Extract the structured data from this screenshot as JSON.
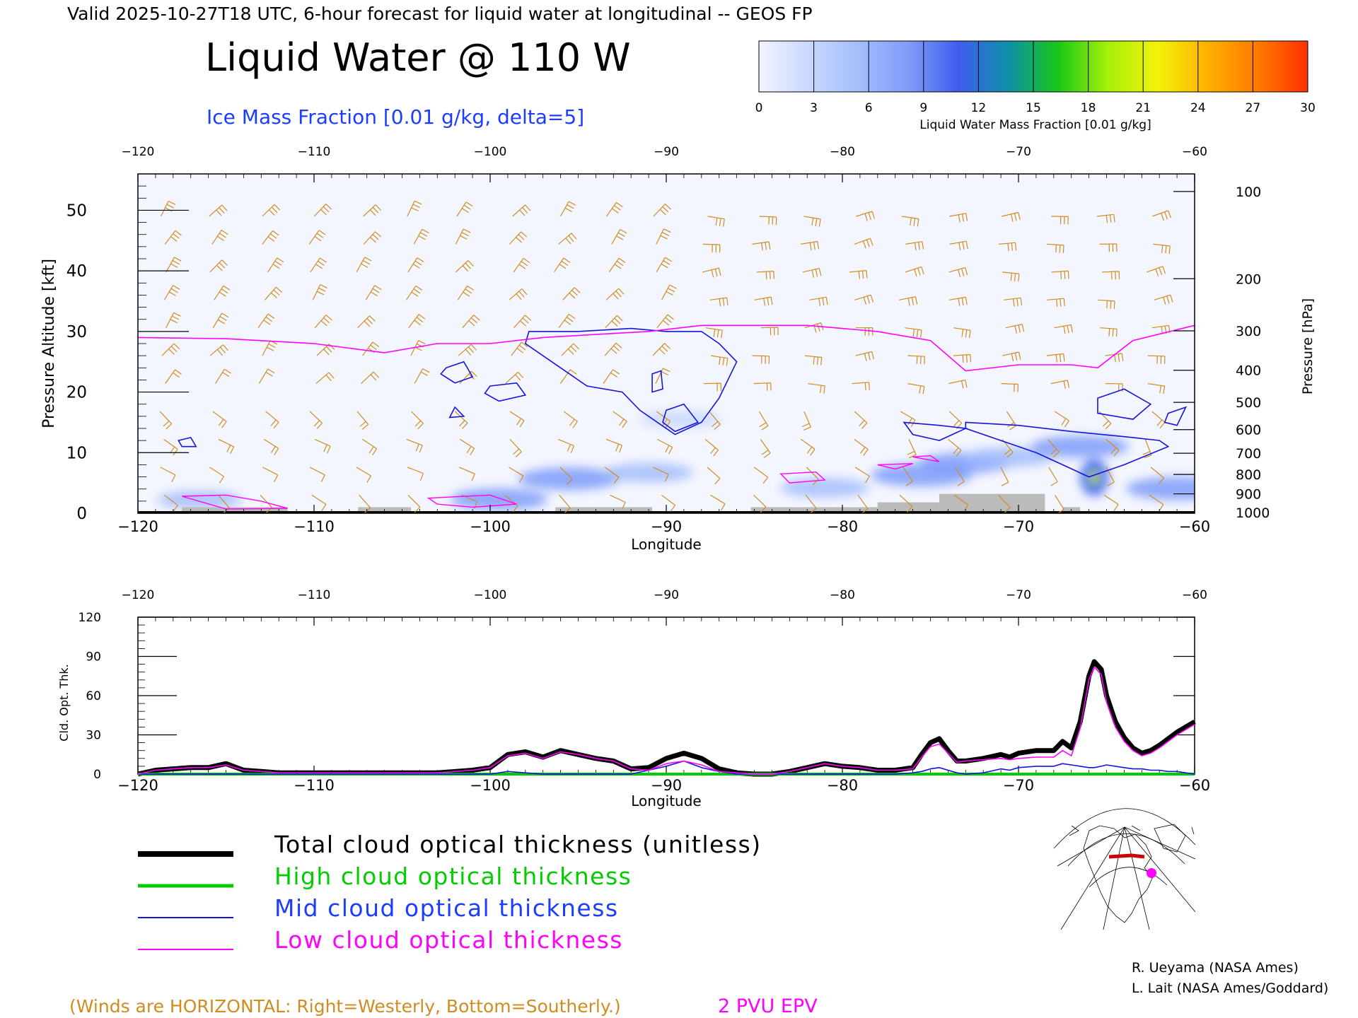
{
  "header": {
    "valid_line": "Valid 2025-10-27T18 UTC, 6-hour forecast for liquid water at longitudinal -- GEOS FP",
    "title": "Liquid Water @ 110 W",
    "subtitle": "Ice Mass Fraction [0.01 g/kg, delta=5]"
  },
  "colorbar": {
    "label": "Liquid Water Mass Fraction [0.01 g/kg]",
    "ticks": [
      "0",
      "3",
      "6",
      "9",
      "12",
      "15",
      "18",
      "21",
      "24",
      "27",
      "30"
    ],
    "colors": [
      "#f3f5ff",
      "#c8d8ff",
      "#a4bdfc",
      "#7f9cfa",
      "#3f5df0",
      "#0f8fa8",
      "#18c818",
      "#a8f00a",
      "#f2f20a",
      "#ffb000",
      "#ff7a00",
      "#ff3000"
    ]
  },
  "colors": {
    "ice_contour": "#1414dc",
    "epv": "#ff00ff",
    "wind": "#d08c20",
    "terrain": "#bbbbbb",
    "total": "#000000",
    "high": "#00cc00",
    "mid": "#1414dc",
    "low": "#ff00ff"
  },
  "chart_data": [
    {
      "type": "heatmap",
      "name": "liquid-water-cross-section",
      "xlabel": "Longitude",
      "ylabel_left": "Pressure Altitude [kft]",
      "ylabel_right": "Pressure [hPa]",
      "xlim": [
        -120,
        -60
      ],
      "ylim": [
        0,
        56
      ],
      "x_ticks": [
        "-120",
        "-110",
        "-100",
        "-90",
        "-80",
        "-70",
        "-60"
      ],
      "y_ticks_left": [
        "0",
        "10",
        "20",
        "30",
        "40",
        "50"
      ],
      "y_ticks_right": [
        {
          "label": "100",
          "kft": 53.1
        },
        {
          "label": "200",
          "kft": 38.7
        },
        {
          "label": "300",
          "kft": 30.1
        },
        {
          "label": "400",
          "kft": 23.6
        },
        {
          "label": "500",
          "kft": 18.3
        },
        {
          "label": "600",
          "kft": 13.8
        },
        {
          "label": "700",
          "kft": 9.9
        },
        {
          "label": "800",
          "kft": 6.4
        },
        {
          "label": "900",
          "kft": 3.2
        },
        {
          "label": "1000",
          "kft": 0.1
        }
      ],
      "liquid_water_blobs": [
        {
          "lon": -99.5,
          "kft": 2.3,
          "value": 8
        },
        {
          "lon": -95.5,
          "kft": 5.7,
          "value": 9
        },
        {
          "lon": -91.0,
          "kft": 6.7,
          "value": 6
        },
        {
          "lon": -89.2,
          "kft": 15.5,
          "value": 4
        },
        {
          "lon": -81.0,
          "kft": 4.2,
          "value": 6
        },
        {
          "lon": -75.5,
          "kft": 6.3,
          "value": 9
        },
        {
          "lon": -73.0,
          "kft": 8.3,
          "value": 7
        },
        {
          "lon": -70.5,
          "kft": 9.3,
          "value": 6
        },
        {
          "lon": -66.5,
          "kft": 11.0,
          "value": 8
        },
        {
          "lon": -65.7,
          "kft": 5.9,
          "value": 18
        },
        {
          "lon": -61.0,
          "kft": 4.1,
          "value": 9
        },
        {
          "lon": -116.5,
          "kft": 2.2,
          "value": 5
        }
      ],
      "epv_2pvu_kft": [
        [
          -120,
          29.0
        ],
        [
          -115,
          28.8
        ],
        [
          -110,
          28.0
        ],
        [
          -106,
          26.5
        ],
        [
          -103,
          28.0
        ],
        [
          -100,
          28.0
        ],
        [
          -97,
          29.0
        ],
        [
          -94,
          29.5
        ],
        [
          -91,
          30.0
        ],
        [
          -88,
          31.0
        ],
        [
          -85,
          31.0
        ],
        [
          -82,
          31.0
        ],
        [
          -78,
          30.0
        ],
        [
          -75,
          28.5
        ],
        [
          -73,
          23.5
        ],
        [
          -70,
          24.5
        ],
        [
          -67,
          24.5
        ],
        [
          -65.5,
          24.0
        ],
        [
          -63.5,
          28.5
        ],
        [
          -60,
          31.0
        ]
      ],
      "ice_contours": [
        [
          [
            -97.8,
            30.0
          ],
          [
            -95.0,
            30.0
          ],
          [
            -92.0,
            30.5
          ],
          [
            -90.0,
            30.0
          ],
          [
            -88.0,
            30.0
          ],
          [
            -87.0,
            28.0
          ],
          [
            -86.0,
            25.0
          ],
          [
            -87.0,
            19.0
          ],
          [
            -88.0,
            15.0
          ],
          [
            -89.5,
            13.0
          ],
          [
            -91.5,
            17.0
          ],
          [
            -92.5,
            20.0
          ],
          [
            -94.5,
            21.0
          ],
          [
            -96.0,
            24.0
          ],
          [
            -98.0,
            28.0
          ]
        ],
        [
          [
            -102.5,
            24.0
          ],
          [
            -101.5,
            25.0
          ],
          [
            -101.0,
            22.5
          ],
          [
            -102.0,
            21.5
          ],
          [
            -102.8,
            23.0
          ]
        ],
        [
          [
            -100.0,
            21.0
          ],
          [
            -98.5,
            21.5
          ],
          [
            -98.0,
            19.5
          ],
          [
            -99.5,
            18.5
          ],
          [
            -100.3,
            19.8
          ]
        ],
        [
          [
            -102.0,
            17.5
          ],
          [
            -101.5,
            16.0
          ],
          [
            -102.3,
            15.8
          ]
        ],
        [
          [
            -90.8,
            23.0
          ],
          [
            -90.3,
            23.5
          ],
          [
            -90.2,
            20.5
          ],
          [
            -90.8,
            20.0
          ]
        ],
        [
          [
            -90.0,
            17.0
          ],
          [
            -89.0,
            18.0
          ],
          [
            -88.2,
            15.0
          ],
          [
            -89.5,
            13.5
          ],
          [
            -90.2,
            15.0
          ]
        ],
        [
          [
            -117.7,
            12.0
          ],
          [
            -117.0,
            12.5
          ],
          [
            -116.7,
            11.0
          ],
          [
            -117.5,
            11.0
          ]
        ],
        [
          [
            -76.5,
            15.0
          ],
          [
            -74.5,
            14.5
          ],
          [
            -73.0,
            14.0
          ],
          [
            -74.5,
            12.0
          ],
          [
            -76.0,
            13.0
          ]
        ],
        [
          [
            -73.0,
            15.0
          ],
          [
            -70.0,
            14.5
          ],
          [
            -67.0,
            13.5
          ],
          [
            -63.5,
            12.5
          ],
          [
            -62.0,
            12.0
          ],
          [
            -61.5,
            11.0
          ],
          [
            -64.0,
            8.0
          ],
          [
            -66.0,
            6.0
          ],
          [
            -67.5,
            8.0
          ],
          [
            -69.0,
            10.0
          ],
          [
            -71.0,
            12.0
          ],
          [
            -73.0,
            14.0
          ]
        ],
        [
          [
            -65.5,
            19.0
          ],
          [
            -64.0,
            20.5
          ],
          [
            -62.5,
            18.0
          ],
          [
            -63.5,
            15.5
          ],
          [
            -65.5,
            16.5
          ]
        ],
        [
          [
            -61.5,
            16.5
          ],
          [
            -60.5,
            17.5
          ],
          [
            -61.0,
            14.5
          ],
          [
            -61.7,
            15.0
          ]
        ]
      ],
      "low_epv_contours": [
        [
          [
            -117.5,
            2.8
          ],
          [
            -115.0,
            3.0
          ],
          [
            -113.0,
            2.0
          ],
          [
            -111.5,
            0.8
          ],
          [
            -115.0,
            0.7
          ]
        ],
        [
          [
            -103.5,
            2.5
          ],
          [
            -100.0,
            3.0
          ],
          [
            -98.5,
            1.5
          ],
          [
            -101.0,
            1.0
          ],
          [
            -103.0,
            1.5
          ]
        ],
        [
          [
            -83.5,
            6.5
          ],
          [
            -81.5,
            6.8
          ],
          [
            -81.0,
            5.5
          ],
          [
            -83.0,
            5.0
          ]
        ],
        [
          [
            -78.0,
            8.0
          ],
          [
            -76.0,
            8.2
          ],
          [
            -77.0,
            7.3
          ]
        ],
        [
          [
            -76.0,
            9.3
          ],
          [
            -75.0,
            9.5
          ],
          [
            -74.5,
            8.5
          ]
        ]
      ],
      "terrain": [
        {
          "from": -117.5,
          "to": -111.5,
          "kft": 1.0
        },
        {
          "from": -107.5,
          "to": -104.5,
          "kft": 1.0
        },
        {
          "from": -96.3,
          "to": -90.8,
          "kft": 1.0
        },
        {
          "from": -85.2,
          "to": -78.0,
          "kft": 1.0
        },
        {
          "from": -78.0,
          "to": -74.5,
          "kft": 1.8
        },
        {
          "from": -74.5,
          "to": -68.5,
          "kft": 3.2
        },
        {
          "from": -67.5,
          "to": -66.5,
          "kft": 1.0
        }
      ]
    },
    {
      "type": "line",
      "name": "cloud-optical-thickness",
      "xlabel": "Longitude",
      "ylabel": "Cld. Opt. Thk.",
      "xlim": [
        -120,
        -60
      ],
      "ylim": [
        0,
        120
      ],
      "x_ticks": [
        "-120",
        "-110",
        "-100",
        "-90",
        "-80",
        "-70",
        "-60"
      ],
      "y_ticks": [
        "0",
        "30",
        "60",
        "90",
        "120"
      ],
      "x": [
        -120,
        -119,
        -118,
        -117,
        -116,
        -115,
        -114,
        -113,
        -112,
        -110,
        -106,
        -103,
        -101,
        -100,
        -99,
        -98,
        -97,
        -96,
        -95,
        -94,
        -93,
        -92,
        -91,
        -90,
        -89,
        -88,
        -87,
        -86,
        -85,
        -84,
        -83,
        -82,
        -81,
        -80,
        -79,
        -78,
        -77,
        -76,
        -75.5,
        -75,
        -74.5,
        -74,
        -73.5,
        -73,
        -72,
        -71,
        -70.5,
        -70,
        -69,
        -68,
        -67.5,
        -67,
        -66.5,
        -66,
        -65.7,
        -65.3,
        -65,
        -64.5,
        -64,
        -63.5,
        -63,
        -62.5,
        -62,
        -61.5,
        -61,
        -60.5,
        -60
      ],
      "series": [
        {
          "name": "Total cloud optical thickness (unitless)",
          "values": [
            0,
            3,
            4,
            5,
            5,
            8,
            3,
            2,
            1,
            1,
            1,
            1,
            3,
            5,
            15,
            17,
            13,
            18,
            15,
            12,
            10,
            4,
            5,
            12,
            16,
            12,
            4,
            1,
            0,
            0,
            2,
            5,
            8,
            6,
            5,
            3,
            3,
            5,
            15,
            24,
            27,
            18,
            10,
            10,
            12,
            15,
            13,
            16,
            18,
            18,
            25,
            20,
            40,
            75,
            86,
            80,
            60,
            40,
            28,
            20,
            16,
            18,
            22,
            27,
            32,
            36,
            40
          ]
        },
        {
          "name": "High cloud optical thickness",
          "values": [
            0,
            0,
            0,
            0,
            0,
            0,
            0,
            0,
            0,
            0,
            0,
            0,
            0,
            0,
            0,
            0,
            0,
            0,
            0,
            0,
            0,
            0,
            0,
            0,
            0,
            0,
            0,
            0,
            0,
            0,
            0,
            0,
            0,
            0,
            0,
            0,
            0,
            0,
            0,
            0,
            0,
            0,
            0,
            0,
            0,
            0,
            0,
            0,
            0,
            0,
            0,
            0,
            0,
            0,
            0,
            0,
            0,
            0,
            0,
            0,
            0,
            0,
            0,
            0,
            0,
            0,
            0
          ]
        },
        {
          "name": "Mid cloud optical thickness",
          "values": [
            0,
            0,
            0,
            0,
            0,
            0,
            0,
            0,
            0,
            0,
            0,
            0,
            0,
            0,
            2,
            1,
            0,
            0,
            0,
            0,
            0,
            0,
            3,
            6,
            10,
            5,
            2,
            0,
            0,
            0,
            0,
            0,
            0,
            0,
            0,
            0,
            0,
            1,
            2,
            4,
            5,
            3,
            1,
            0,
            1,
            4,
            3,
            5,
            6,
            6,
            8,
            7,
            6,
            5,
            5,
            6,
            7,
            6,
            5,
            4,
            4,
            3,
            3,
            2,
            2,
            1,
            0
          ]
        },
        {
          "name": "Low cloud optical thickness",
          "values": [
            0,
            3,
            4,
            5,
            5,
            7,
            3,
            2,
            1,
            1,
            1,
            1,
            3,
            5,
            14,
            16,
            12,
            17,
            15,
            12,
            10,
            4,
            3,
            8,
            10,
            7,
            2,
            1,
            0,
            0,
            2,
            5,
            8,
            6,
            5,
            3,
            3,
            4,
            13,
            21,
            23,
            16,
            9,
            10,
            11,
            12,
            11,
            12,
            13,
            13,
            18,
            14,
            35,
            72,
            82,
            76,
            55,
            36,
            25,
            18,
            14,
            16,
            20,
            25,
            30,
            34,
            38
          ]
        }
      ]
    }
  ],
  "legend": {
    "items": [
      "Total cloud optical thickness (unitless)",
      "High cloud optical thickness",
      "Mid cloud optical thickness",
      "Low cloud optical thickness"
    ]
  },
  "credits": [
    "R. Ueyama (NASA Ames)",
    "L. Lait (NASA Ames/Goddard)"
  ],
  "footer": {
    "winds_note": "(Winds are HORIZONTAL: Right=Westerly, Bottom=Southerly.)",
    "epv_note": "2 PVU EPV"
  }
}
